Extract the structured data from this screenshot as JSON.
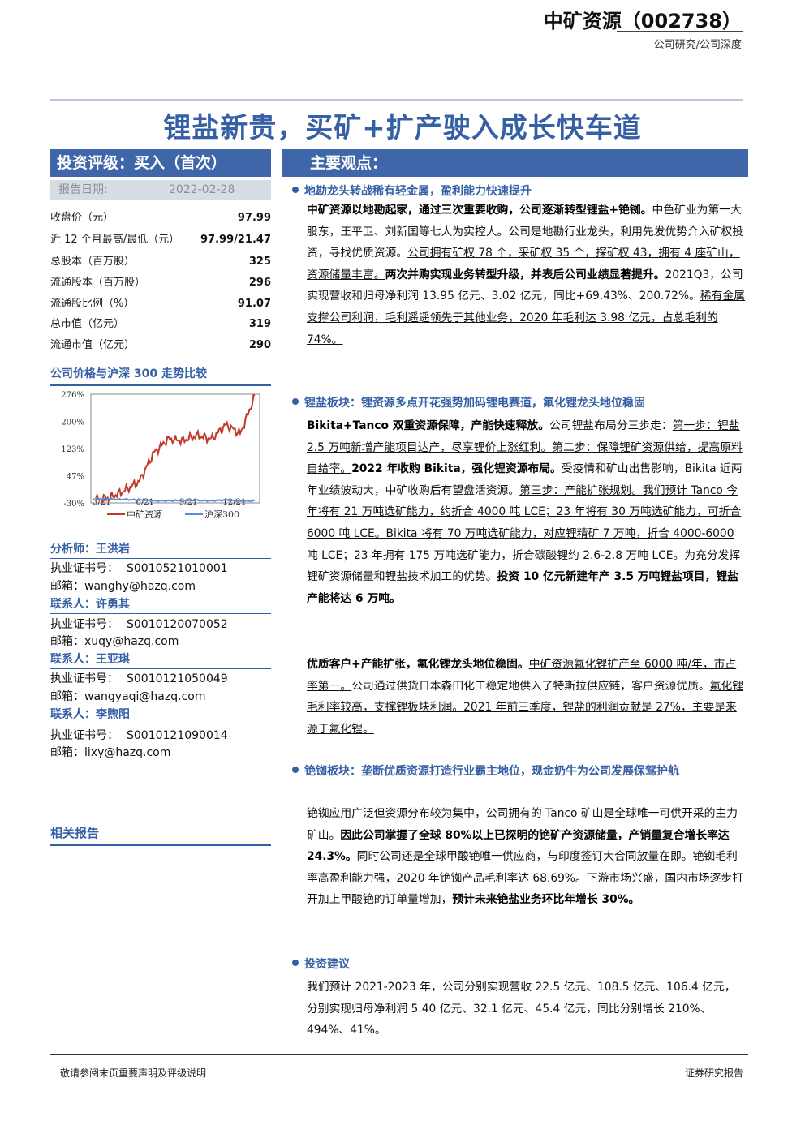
{
  "header": {
    "company": "中矿资源（002738）",
    "subtitle": "公司研究/公司深度"
  },
  "title": "锂盐新贵，买矿+扩产驶入成长快车道",
  "rating": {
    "label": "投资评级：买入（首次）",
    "date_label": "报告日期:",
    "date": "2022-02-28"
  },
  "stats": [
    {
      "label": "收盘价（元）",
      "value": "97.99"
    },
    {
      "label": "近 12 个月最高/最低（元）",
      "value": "97.99/21.47"
    },
    {
      "label": "总股本（百万股）",
      "value": "325"
    },
    {
      "label": "流通股本（百万股）",
      "value": "296"
    },
    {
      "label": "流通股比例（%）",
      "value": "91.07"
    },
    {
      "label": "总市值（亿元）",
      "value": "319"
    },
    {
      "label": "流通市值（亿元）",
      "value": "290"
    }
  ],
  "chart_title": "公司价格与沪深 300 走势比较",
  "chart_data": {
    "type": "line",
    "x_ticks": [
      "3/21",
      "6/21",
      "9/21",
      "12/21"
    ],
    "y_ticks": [
      "276%",
      "200%",
      "123%",
      "47%",
      "-30%"
    ],
    "ylim": [
      -30,
      276
    ],
    "x": [
      "2021-03",
      "2021-04",
      "2021-05",
      "2021-06",
      "2021-07",
      "2021-08",
      "2021-09",
      "2021-10",
      "2021-11",
      "2021-12",
      "2022-01",
      "2022-02"
    ],
    "series": [
      {
        "name": "中矿资源",
        "color": "#c0392b",
        "values": [
          -20,
          -15,
          5,
          30,
          110,
          150,
          145,
          160,
          150,
          190,
          165,
          270
        ]
      },
      {
        "name": "沪深300",
        "color": "#5b8ed6",
        "values": [
          -18,
          -20,
          -20,
          -22,
          -24,
          -24,
          -23,
          -23,
          -24,
          -22,
          -25,
          -24
        ]
      }
    ]
  },
  "contacts": [
    {
      "role": "分析师：王洪岩",
      "cert_label": "执业证书号：",
      "cert": "S0010521010001",
      "mail_label": "邮箱：",
      "mail": "wanghy@hazq.com"
    },
    {
      "role": "联系人：许勇其",
      "cert_label": "执业证书号：",
      "cert": "S0010120070052",
      "mail_label": "邮箱：",
      "mail": "xuqy@hazq.com"
    },
    {
      "role": "联系人：王亚琪",
      "cert_label": "执业证书号：",
      "cert": "S0010121050049",
      "mail_label": "邮箱：",
      "mail": "wangyaqi@hazq.com"
    },
    {
      "role": "联系人：李煦阳",
      "cert_label": "执业证书号：",
      "cert": "S0010121090014",
      "mail_label": "邮箱：",
      "mail": "lixy@hazq.com"
    }
  ],
  "related": "相关报告",
  "main_header": "主要观点：",
  "sections": [
    {
      "heading": "地勘龙头转战稀有轻金属，盈利能力快速提升"
    },
    {
      "heading": "锂盐板块：锂资源多点开花强势加码锂电赛道，氟化锂龙头地位稳固"
    },
    {
      "heading": "铯铷板块：垄断优质资源打造行业霸主地位，现金奶牛为公司发展保驾护航"
    },
    {
      "heading": "投资建议"
    }
  ],
  "paragraphs": {
    "p1_bold": "中矿资源以地勘起家，通过三次重要收购，公司逐渐转型锂盐+铯铷。",
    "p1_text": "中色矿业为第一大股东，王平卫、刘新国等七人为实控人。公司是地勘行业龙头，利用先发优势介入矿权投资，寻找优质资源。",
    "p1_u": "公司拥有矿权 78 个，采矿权 35 个，探矿权 43，拥有 4 座矿山，资源储量丰富。",
    "p1_bold2": "两次并购实现业务转型升级，并表后公司业绩显著提升。",
    "p1_text2": "2021Q3，公司实现营收和归母净利润 13.95 亿元、3.02 亿元，同比+69.43%、200.72%。",
    "p1_u2": "稀有金属支撑公司利润，毛利遥遥领先于其他业务，2020 年毛利达 3.98 亿元，占总毛利的 74%。",
    "p2_bold": "Bikita+Tanco 双重资源保障，产能快速释放。",
    "p2_text": "公司锂盐布局分三步走：",
    "p2_u": "第一步：锂盐 2.5 万吨新增产能项目达产，尽享锂价上涨红利。第二步：保障锂矿资源供给，提高原料自给率。",
    "p2_bold2": "2022 年收购 Bikita，强化锂资源布局。",
    "p2_text2": "受疫情和矿山出售影响，Bikita 近两年业绩波动大，中矿收购后有望盘活资源。",
    "p2_u2": "第三步：产能扩张规划。我们预计 Tanco 今年将有 21 万吨选矿能力，约折合 4000 吨 LCE；23 年将有 30 万吨选矿能力，可折合 6000 吨 LCE。Bikita 将有 70 万吨选矿能力，对应锂精矿 7 万吨，折合 4000-6000 吨 LCE；23 年拥有 175 万吨选矿能力，折合碳酸锂约 2.6-2.8 万吨 LCE。",
    "p2_text3": "为充分发挥锂矿资源储量和锂盐技术加工的优势。",
    "p2_bold3": "投资 10 亿元新建年产 3.5 万吨锂盐项目，锂盐产能将达 6 万吨。",
    "p3_bold": "优质客户+产能扩张，氟化锂龙头地位稳固。",
    "p3_u": "中矿资源氟化锂扩产至 6000 吨/年，市占率第一。",
    "p3_text": "公司通过供货日本森田化工稳定地供入了特斯拉供应链，客户资源优质。",
    "p3_u2": "氟化锂毛利率较高，支撑锂板块利润。2021 年前三季度，锂盐的利润贡献是 27%，主要是来源于氟化锂。",
    "p4_text": "铯铷应用广泛但资源分布较为集中，公司拥有的 Tanco 矿山是全球唯一可供开采的主力矿山。",
    "p4_bold": "因此公司掌握了全球 80%以上已探明的铯矿产资源储量，产销量复合增长率达 24.3%。",
    "p4_text2": "同时公司还是全球甲酸铯唯一供应商，与印度签订大合同放量在即。铯铷毛利率高盈利能力强，2020 年铯铷产品毛利率达 68.69%。下游市场兴盛，国内市场逐步打开加上甲酸铯的订单量增加，",
    "p4_bold2": "预计未来铯盐业务环比年增长 30%。",
    "p5_text": "我们预计 2021-2023 年，公司分别实现营收 22.5 亿元、108.5 亿元、106.4 亿元，分别实现归母净利润 5.40 亿元、32.1 亿元、45.4 亿元，同比分别增长 210%、494%、41%。"
  },
  "footer": {
    "left": "敬请参阅末页重要声明及评级说明",
    "right": "证券研究报告"
  }
}
